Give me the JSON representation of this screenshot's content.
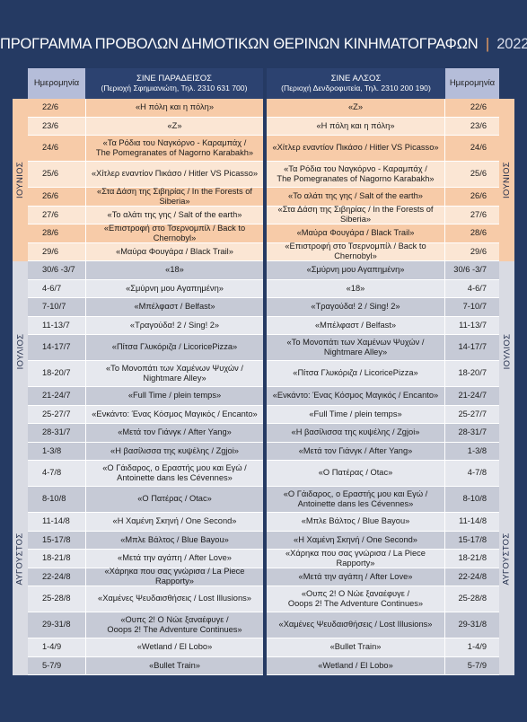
{
  "title": {
    "main": "ΠΡΟΓΡΑΜΜΑ ΠΡΟΒΟΛΩΝ ΔΗΜΟΤΙΚΩΝ ΘΕΡΙΝΩΝ ΚΙΝΗΜΑΤΟΓΡΑΦΩΝ",
    "separator": "|",
    "year": "2022"
  },
  "header": {
    "date_left": "Ημερομηνία",
    "date_right": "Ημερομηνία",
    "cinema1_name": "ΣΙΝΕ ΠΑΡΑΔΕΙΣΟΣ",
    "cinema1_info": "(Περιοχή Σφημιανιώτη, Τηλ. 2310 631 700)",
    "cinema2_name": "ΣΙΝΕ ΑΛΣΟΣ",
    "cinema2_info": "(Περιοχή Δενδροφυτεία, Τηλ. 2310 200 190)"
  },
  "months": [
    {
      "label": "ΙΟΥΝΙΟΣ",
      "rows": [
        {
          "d1": "22/6",
          "f1": [
            "«Η πόλη και η πόλη»"
          ],
          "f2": [
            "«Ζ»"
          ],
          "d2": "22/6"
        },
        {
          "d1": "23/6",
          "f1": [
            "«Ζ»"
          ],
          "f2": [
            "«Η πόλη και η πόλη»"
          ],
          "d2": "23/6"
        },
        {
          "d1": "24/6",
          "f1": [
            "«Τα Ρόδια του Ναγκόρνο - Καραμπάχ /",
            "The Pomegranates of Nagorno Karabakh»"
          ],
          "f2": [
            "«Χίτλερ εναντίον Πικάσο / Hitler VS Picasso»"
          ],
          "d2": "24/6"
        },
        {
          "d1": "25/6",
          "f1": [
            "«Χίτλερ εναντίον Πικάσο / Hitler VS Picasso»"
          ],
          "f2": [
            "«Τα Ρόδια του Ναγκόρνο - Καραμπάχ /",
            "The Pomegranates of Nagorno Karabakh»"
          ],
          "d2": "25/6"
        },
        {
          "d1": "26/6",
          "f1": [
            "«Στα Δάση της Σιβηρίας / In the Forests of Siberia»"
          ],
          "f2": [
            "«Το αλάτι της γης / Salt of the earth»"
          ],
          "d2": "26/6"
        },
        {
          "d1": "27/6",
          "f1": [
            "«Το αλάτι της γης / Salt of the earth»"
          ],
          "f2": [
            "«Στα Δάση της Σιβηρίας / In the Forests of Siberia»"
          ],
          "d2": "27/6"
        },
        {
          "d1": "28/6",
          "f1": [
            "«Επιστροφή στο Τσερνομπίλ / Back to Chernobyl»"
          ],
          "f2": [
            "«Μαύρα Φουγάρα / Black Trail»"
          ],
          "d2": "28/6"
        },
        {
          "d1": "29/6",
          "f1": [
            "«Μαύρα Φουγάρα / Black Trail»"
          ],
          "f2": [
            "«Επιστροφή στο Τσερνομπίλ / Back to Chernobyl»"
          ],
          "d2": "29/6"
        }
      ]
    },
    {
      "label": "ΙΟΥΛΙΟΣ",
      "rows": [
        {
          "d1": "30/6 -3/7",
          "f1": [
            "«18»"
          ],
          "f2": [
            "«Σμύρνη μου Αγαπημένη»"
          ],
          "d2": "30/6 -3/7"
        },
        {
          "d1": "4-6/7",
          "f1": [
            "«Σμύρνη μου Αγαπημένη»"
          ],
          "f2": [
            "«18»"
          ],
          "d2": "4-6/7"
        },
        {
          "d1": "7-10/7",
          "f1": [
            "«Μπέλφαστ / Belfast»"
          ],
          "f2": [
            "«Τραγούδα! 2 / Sing! 2»"
          ],
          "d2": "7-10/7"
        },
        {
          "d1": "11-13/7",
          "f1": [
            "«Τραγούδα! 2 / Sing! 2»"
          ],
          "f2": [
            "«Μπέλφαστ / Belfast»"
          ],
          "d2": "11-13/7"
        },
        {
          "d1": "14-17/7",
          "f1": [
            "«Πίτσα Γλυκόριζα / LicoricePizza»"
          ],
          "f2": [
            "«Το Μονοπάτι των Χαμένων Ψυχών /",
            "Nightmare Alley»"
          ],
          "d2": "14-17/7"
        },
        {
          "d1": "18-20/7",
          "f1": [
            "«Το Μονοπάτι των Χαμένων Ψυχών /",
            "Nightmare Alley»"
          ],
          "f2": [
            "«Πίτσα Γλυκόριζα / LicoricePizza»"
          ],
          "d2": "18-20/7"
        },
        {
          "d1": "21-24/7",
          "f1": [
            "«Full Time / plein temps»"
          ],
          "f2": [
            "«Ενκάντο: Ένας Κόσμος Μαγικός / Encanto»"
          ],
          "d2": "21-24/7"
        },
        {
          "d1": "25-27/7",
          "f1": [
            "«Ενκάντο: Ένας Κόσμος Μαγικός / Encanto»"
          ],
          "f2": [
            "«Full Time / plein temps»"
          ],
          "d2": "25-27/7"
        },
        {
          "d1": "28-31/7",
          "f1": [
            "«Μετά τον Γιάνγκ / After Yang»"
          ],
          "f2": [
            "«Η βασίλισσα της κυψέλης / Zgjoi»"
          ],
          "d2": "28-31/7"
        }
      ]
    },
    {
      "label": "ΑΥΓΟΥΣΤΟΣ",
      "rows": [
        {
          "d1": "1-3/8",
          "f1": [
            "«Η βασίλισσα της κυψέλης / Zgjoi»"
          ],
          "f2": [
            "«Μετά τον Γιάνγκ / After Yang»"
          ],
          "d2": "1-3/8"
        },
        {
          "d1": "4-7/8",
          "f1": [
            "«Ο Γάιδαρος, ο Εραστής μου και Εγώ /",
            "Antoinette dans les Cévennes»"
          ],
          "f2": [
            "«Ο Πατέρας / Otac»"
          ],
          "d2": "4-7/8"
        },
        {
          "d1": "8-10/8",
          "f1": [
            "«Ο Πατέρας / Otac»"
          ],
          "f2": [
            "«Ο Γάιδαρος, ο Εραστής μου και Εγώ /",
            "Antoinette dans les Cévennes»"
          ],
          "d2": "8-10/8"
        },
        {
          "d1": "11-14/8",
          "f1": [
            "«Η Χαμένη Σκηνή / One Second»"
          ],
          "f2": [
            "«Μπλε Βάλτος / Blue Bayou»"
          ],
          "d2": "11-14/8"
        },
        {
          "d1": "15-17/8",
          "f1": [
            "«Μπλε Βάλτος / Blue Bayou»"
          ],
          "f2": [
            "«Η Χαμένη Σκηνή / One Second»"
          ],
          "d2": "15-17/8"
        },
        {
          "d1": "18-21/8",
          "f1": [
            "«Μετά την αγάπη / After Love»"
          ],
          "f2": [
            "«Χάρηκα που σας γνώρισα / La Piece Rapporty»"
          ],
          "d2": "18-21/8"
        },
        {
          "d1": "22-24/8",
          "f1": [
            "«Χάρηκα που σας γνώρισα / La Piece Rapporty»"
          ],
          "f2": [
            "«Μετά την αγάπη / After Love»"
          ],
          "d2": "22-24/8"
        },
        {
          "d1": "25-28/8",
          "f1": [
            "«Χαμένες Ψευδαισθήσεις / Lost Illusions»"
          ],
          "f2": [
            "«Ουπς 2! Ο Νώε ξαναέφυγε /",
            "Ooops 2! The Adventure Continues»"
          ],
          "d2": "25-28/8"
        },
        {
          "d1": "29-31/8",
          "f1": [
            "«Ουπς 2! Ο Νώε ξαναέφυγε /",
            "Ooops 2! The Adventure Continues»"
          ],
          "f2": [
            "«Χαμένες Ψευδαισθήσεις / Lost Illusions»"
          ],
          "d2": "29-31/8"
        },
        {
          "d1": "1-4/9",
          "f1": [
            "«Wetland / El Lobo»"
          ],
          "f2": [
            "«Bullet Train»"
          ],
          "d2": "1-4/9"
        },
        {
          "d1": "5-7/9",
          "f1": [
            "«Bullet Train»"
          ],
          "f2": [
            "«Wetland / El Lobo»"
          ],
          "d2": "5-7/9"
        }
      ]
    }
  ],
  "colors": {
    "background": "#253a63",
    "june_row": "#f7cba8",
    "june_row_alt": "#fbe6d4",
    "july_aug_row": "#c6cad6",
    "july_aug_row_alt": "#e6e8ee",
    "header_date": "#b5bdd9",
    "header_cinema": "#2c4270"
  }
}
